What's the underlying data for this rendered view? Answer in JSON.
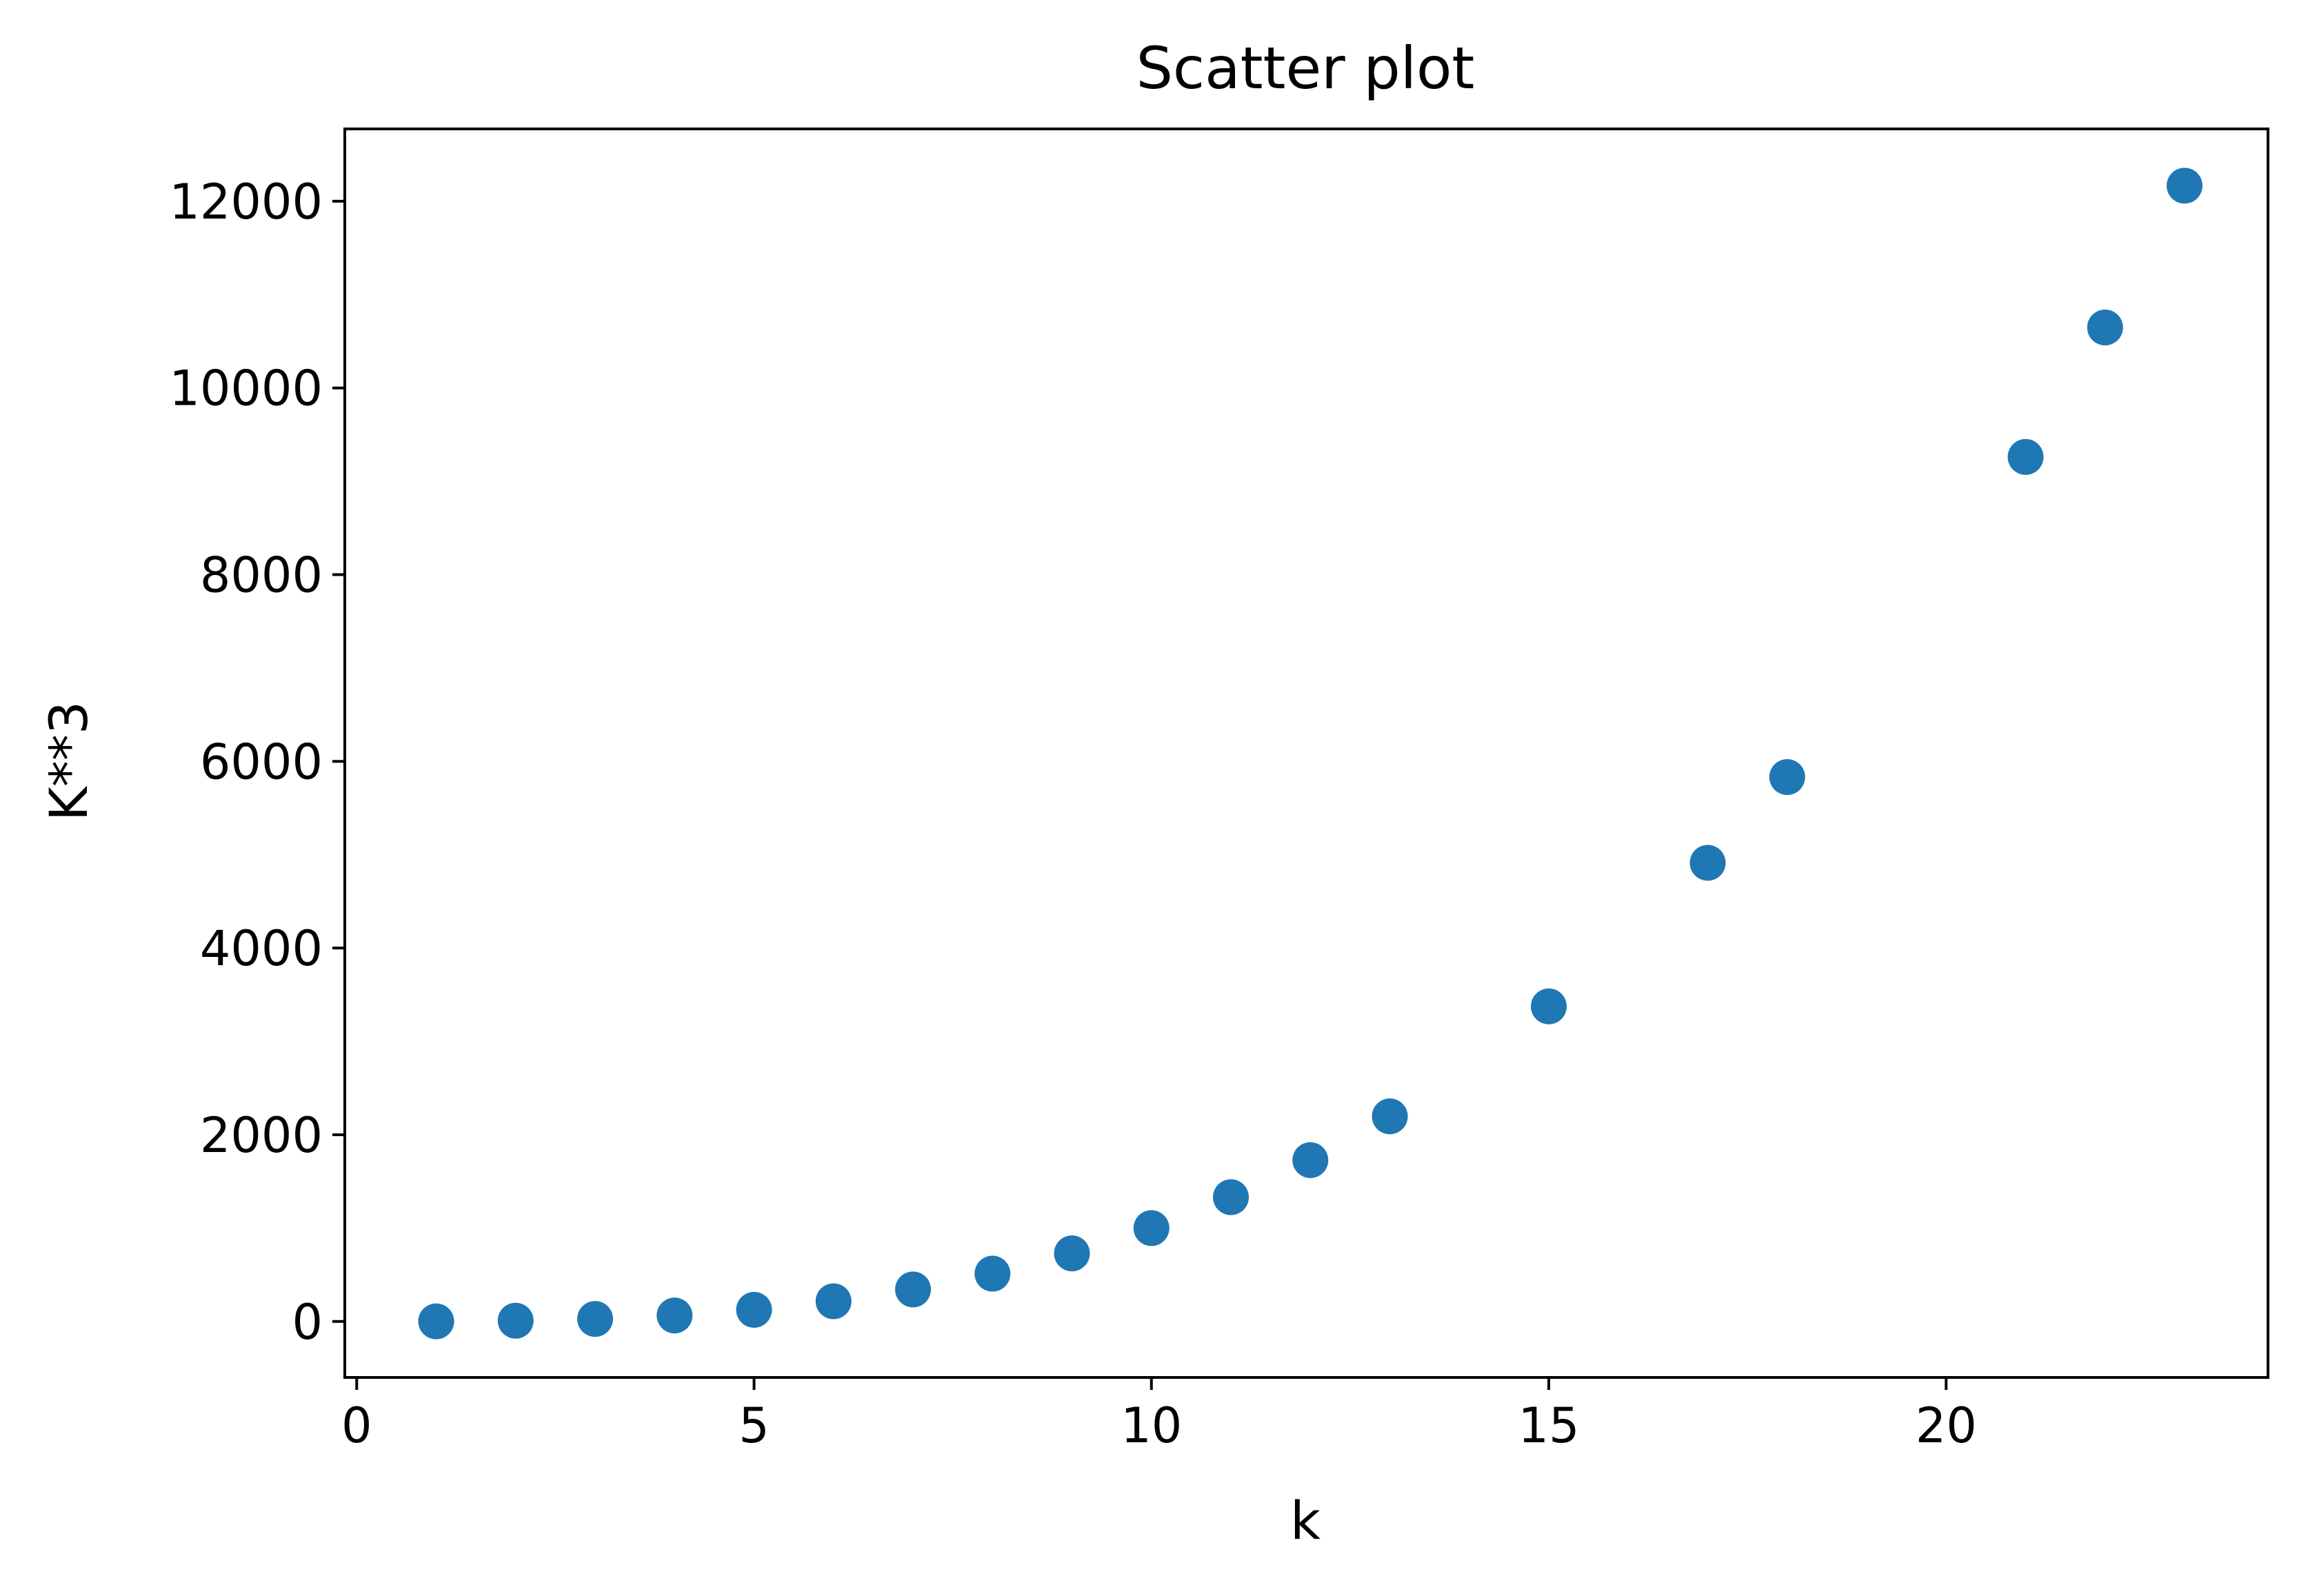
{
  "chart_data": {
    "type": "scatter",
    "title": "Scatter plot",
    "xlabel": "k",
    "ylabel": "K**3",
    "xlim": [
      -0.15,
      24.05
    ],
    "ylim": [
      -600,
      12775
    ],
    "x_ticks": [
      0,
      5,
      10,
      15,
      20
    ],
    "y_ticks": [
      0,
      2000,
      4000,
      6000,
      8000,
      10000,
      12000
    ],
    "x_tick_labels": [
      "0",
      "5",
      "10",
      "15",
      "20"
    ],
    "y_tick_labels": [
      "0",
      "2000",
      "4000",
      "6000",
      "8000",
      "10000",
      "12000"
    ],
    "grid": false,
    "legend": "none",
    "marker_color": "#1f77b4",
    "series": [
      {
        "x": [
          1,
          2,
          3,
          4,
          5,
          6,
          7,
          8,
          9,
          10,
          11,
          12,
          13,
          15,
          17,
          18,
          21,
          22,
          23
        ],
        "y": [
          1,
          8,
          27,
          64,
          125,
          216,
          343,
          512,
          729,
          1000,
          1331,
          1728,
          2197,
          3375,
          4913,
          5832,
          9261,
          10648,
          12167
        ]
      }
    ]
  }
}
